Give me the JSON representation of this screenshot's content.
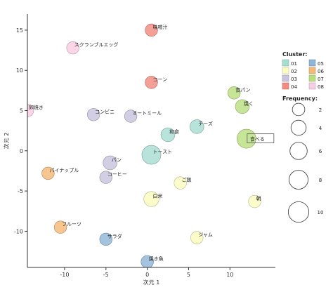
{
  "chart_data": {
    "type": "scatter",
    "subtype": "bubble",
    "xlabel": "次元 1",
    "ylabel": "次元 2",
    "xlim": [
      -14.5,
      15.5
    ],
    "ylim": [
      -14.5,
      17
    ],
    "xticks": [
      -10,
      -5,
      0,
      5,
      10
    ],
    "yticks": [
      -10,
      -5,
      0,
      5,
      10,
      15
    ],
    "grid": false,
    "cluster_legend": {
      "title": "Cluster:",
      "position": "top-right",
      "items": [
        {
          "id": "01",
          "color": "#a8ddd2"
        },
        {
          "id": "02",
          "color": "#fbfbc0"
        },
        {
          "id": "03",
          "color": "#c8c5de"
        },
        {
          "id": "04",
          "color": "#f28b80"
        },
        {
          "id": "05",
          "color": "#8fb6d8"
        },
        {
          "id": "06",
          "color": "#f5b877"
        },
        {
          "id": "07",
          "color": "#b9df80"
        },
        {
          "id": "08",
          "color": "#f9cde3"
        }
      ]
    },
    "size_legend": {
      "title": "Frequency:",
      "position": "right",
      "values": [
        2,
        4,
        6,
        8,
        10
      ]
    },
    "points": [
      {
        "label": "味噌汁",
        "x": 0.5,
        "y": 15,
        "cluster": "04",
        "frequency": 2
      },
      {
        "label": "スクランブルエッグ",
        "x": -9,
        "y": 12.8,
        "cluster": "08",
        "frequency": 2
      },
      {
        "label": "コーン",
        "x": 0.5,
        "y": 8.5,
        "cluster": "04",
        "frequency": 2
      },
      {
        "label": "卵焼き",
        "x": -14.5,
        "y": 5,
        "cluster": "08",
        "frequency": 2
      },
      {
        "label": "コンビニ",
        "x": -6.5,
        "y": 4.5,
        "cluster": "03",
        "frequency": 2
      },
      {
        "label": "オートミール",
        "x": -2,
        "y": 4.3,
        "cluster": "03",
        "frequency": 2
      },
      {
        "label": "食パン",
        "x": 10.5,
        "y": 7.2,
        "cluster": "07",
        "frequency": 2
      },
      {
        "label": "焼く",
        "x": 11.5,
        "y": 5.5,
        "cluster": "07",
        "frequency": 3
      },
      {
        "label": "チーズ",
        "x": 6,
        "y": 3,
        "cluster": "01",
        "frequency": 3
      },
      {
        "label": "和食",
        "x": 2.5,
        "y": 2,
        "cluster": "01",
        "frequency": 3
      },
      {
        "label": "食べる",
        "x": 12,
        "y": 1.5,
        "cluster": "07",
        "frequency": 8
      },
      {
        "label": "トースト",
        "x": 0.5,
        "y": -0.5,
        "cluster": "01",
        "frequency": 8
      },
      {
        "label": "パン",
        "x": -4.5,
        "y": -1.5,
        "cluster": "03",
        "frequency": 3
      },
      {
        "label": "パイナップル",
        "x": -12,
        "y": -2.8,
        "cluster": "06",
        "frequency": 2
      },
      {
        "label": "コーヒー",
        "x": -5,
        "y": -3.3,
        "cluster": "03",
        "frequency": 2
      },
      {
        "label": "ご飯",
        "x": 4,
        "y": -4,
        "cluster": "02",
        "frequency": 2
      },
      {
        "label": "白米",
        "x": 0.5,
        "y": -6,
        "cluster": "02",
        "frequency": 4
      },
      {
        "label": "朝",
        "x": 13,
        "y": -6.3,
        "cluster": "02",
        "frequency": 2
      },
      {
        "label": "フルーツ",
        "x": -10.5,
        "y": -9.5,
        "cluster": "06",
        "frequency": 2
      },
      {
        "label": "サラダ",
        "x": -5,
        "y": -11,
        "cluster": "05",
        "frequency": 2
      },
      {
        "label": "ジャム",
        "x": 6,
        "y": -10.8,
        "cluster": "02",
        "frequency": 2
      },
      {
        "label": "焼き魚",
        "x": 0,
        "y": -13.8,
        "cluster": "05",
        "frequency": 2
      }
    ],
    "highlighted_label": "食べる"
  }
}
